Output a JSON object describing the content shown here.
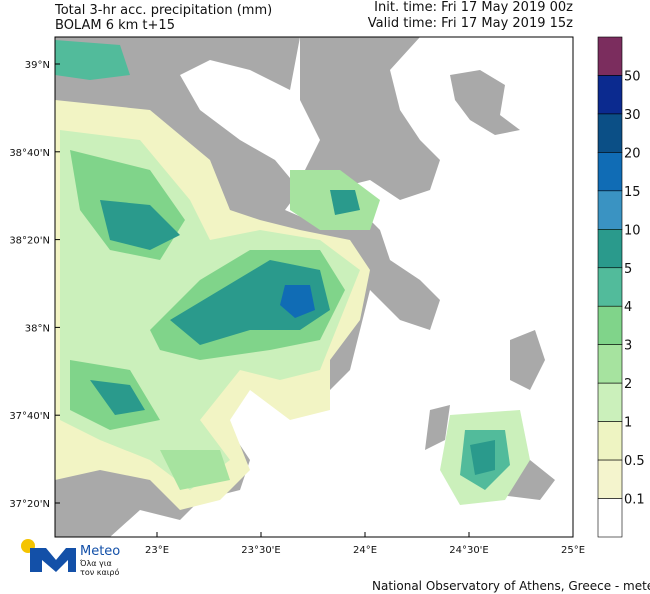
{
  "header": {
    "title": "Total 3-hr acc. precipitation (mm)",
    "model": "BOLAM 6 km t+15",
    "init_time": "Init. time: Fri 17 May 2019 00z",
    "valid_time": "Valid time: Fri 17 May 2019 15z"
  },
  "map": {
    "lat_labels": [
      "39°N",
      "38°40'N",
      "38°20'N",
      "38°N",
      "37°40'N",
      "37°20'N"
    ],
    "lon_labels": [
      "23°E",
      "23°30'E",
      "24°E",
      "24°30'E",
      "25°E"
    ]
  },
  "colorbar": {
    "levels": [
      50,
      30,
      20,
      15,
      10,
      5,
      4,
      3,
      2,
      1,
      0.5,
      0.1
    ],
    "colors": [
      "#7b2d5e",
      "#0b2a8f",
      "#0b4f86",
      "#106cb5",
      "#3a93c2",
      "#2a9a8c",
      "#52bb9b",
      "#80d48a",
      "#a6e39f",
      "#cbf0bb",
      "#eef4c2",
      "#f4f4cd",
      "#ffffff"
    ]
  },
  "logo": {
    "name": "Meteo",
    "tagline_1": "Όλα για",
    "tagline_2": "τον καιρό"
  },
  "footer": "National Observatory of Athens, Greece - meteo.gr"
}
